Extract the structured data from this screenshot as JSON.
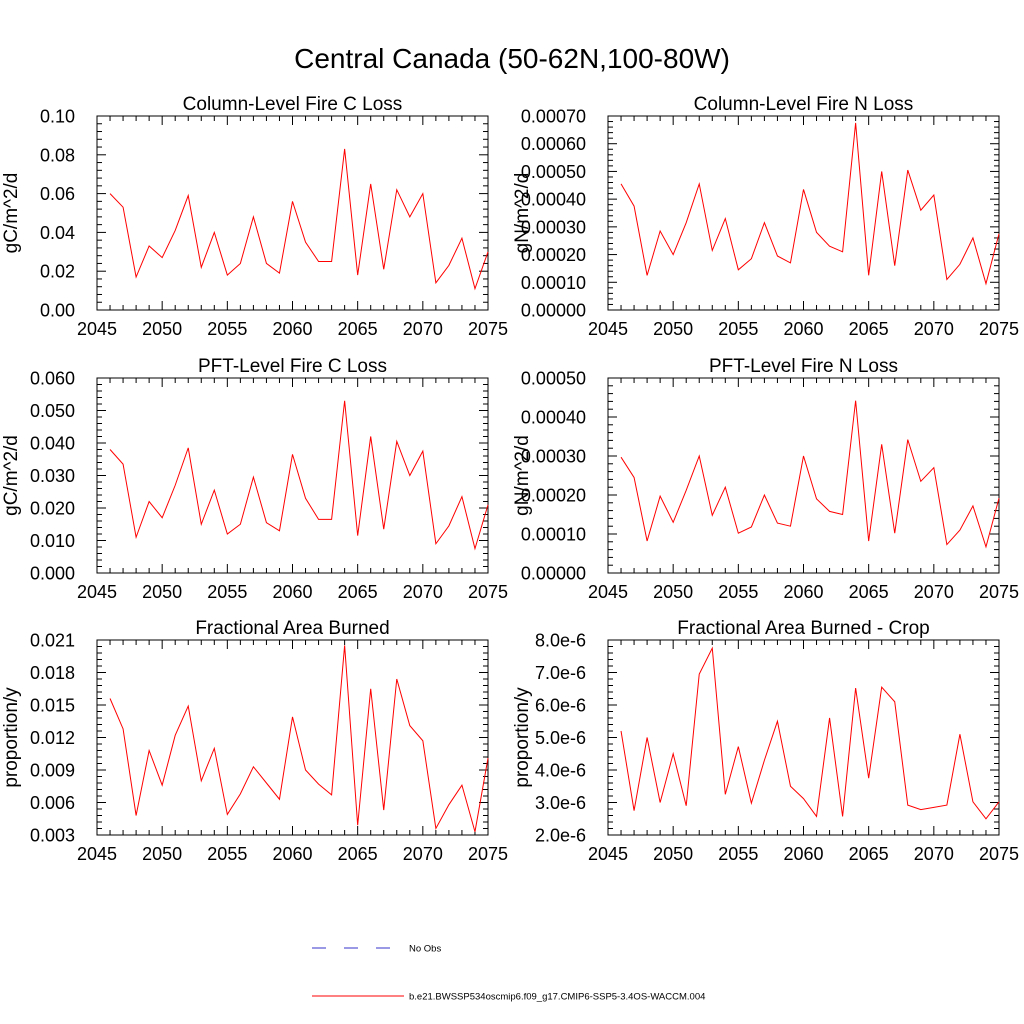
{
  "figure": {
    "title": "Central Canada (50-62N,100-80W)"
  },
  "legend": {
    "entries": [
      {
        "label": "No Obs",
        "color": "#3333cc",
        "dashed": true
      },
      {
        "label": "b.e21.BWSSP534oscmip6.f09_g17.CMIP6-SSP5-3.4OS-WACCM.004",
        "color": "#ff0000",
        "dashed": false
      }
    ]
  },
  "chart_data": [
    {
      "type": "line",
      "title": "Column-Level Fire C Loss",
      "xlabel": "",
      "ylabel": "gC/m^2/d",
      "xlim": [
        2045,
        2075
      ],
      "ylim": [
        0.0,
        0.1
      ],
      "xticks": [
        2045,
        2050,
        2055,
        2060,
        2065,
        2070,
        2075
      ],
      "yticks": [
        0.0,
        0.02,
        0.04,
        0.06,
        0.08,
        0.1
      ],
      "ytick_labels": [
        "0.00",
        "0.02",
        "0.04",
        "0.06",
        "0.08",
        "0.10"
      ],
      "series": [
        {
          "name": "b.e21.BWSSP534oscmip6.f09_g17.CMIP6-SSP5-3.4OS-WACCM.004",
          "color": "#ff0000",
          "x": [
            2046,
            2047,
            2048,
            2049,
            2050,
            2051,
            2052,
            2053,
            2054,
            2055,
            2056,
            2057,
            2058,
            2059,
            2060,
            2061,
            2062,
            2063,
            2064,
            2065,
            2066,
            2067,
            2068,
            2069,
            2070,
            2071,
            2072,
            2073,
            2074,
            2075
          ],
          "values": [
            0.06,
            0.053,
            0.017,
            0.033,
            0.027,
            0.041,
            0.059,
            0.022,
            0.04,
            0.018,
            0.024,
            0.048,
            0.024,
            0.019,
            0.056,
            0.035,
            0.025,
            0.025,
            0.083,
            0.018,
            0.065,
            0.021,
            0.062,
            0.048,
            0.06,
            0.014,
            0.023,
            0.037,
            0.011,
            0.03
          ]
        }
      ]
    },
    {
      "type": "line",
      "title": "Column-Level Fire N Loss",
      "xlabel": "",
      "ylabel": "gN/m^2/d",
      "xlim": [
        2045,
        2075
      ],
      "ylim": [
        0.0,
        0.0007
      ],
      "xticks": [
        2045,
        2050,
        2055,
        2060,
        2065,
        2070,
        2075
      ],
      "yticks": [
        0.0,
        0.0001,
        0.0002,
        0.0003,
        0.0004,
        0.0005,
        0.0006,
        0.0007
      ],
      "ytick_labels": [
        "0.00000",
        "0.00010",
        "0.00020",
        "0.00030",
        "0.00040",
        "0.00050",
        "0.00060",
        "0.00070"
      ],
      "series": [
        {
          "name": "b.e21.BWSSP534oscmip6.f09_g17.CMIP6-SSP5-3.4OS-WACCM.004",
          "color": "#ff0000",
          "x": [
            2046,
            2047,
            2048,
            2049,
            2050,
            2051,
            2052,
            2053,
            2054,
            2055,
            2056,
            2057,
            2058,
            2059,
            2060,
            2061,
            2062,
            2063,
            2064,
            2065,
            2066,
            2067,
            2068,
            2069,
            2070,
            2071,
            2072,
            2073,
            2074,
            2075
          ],
          "values": [
            0.000455,
            0.000375,
            0.000125,
            0.000285,
            0.0002,
            0.000315,
            0.000455,
            0.000215,
            0.00033,
            0.000145,
            0.000185,
            0.000315,
            0.000195,
            0.00017,
            0.000435,
            0.00028,
            0.00023,
            0.00021,
            0.000675,
            0.000125,
            0.0005,
            0.00016,
            0.000505,
            0.00036,
            0.000415,
            0.00011,
            0.000165,
            0.00026,
            9.5e-05,
            0.000275
          ]
        }
      ]
    },
    {
      "type": "line",
      "title": "PFT-Level Fire C Loss",
      "xlabel": "",
      "ylabel": "gC/m^2/d",
      "xlim": [
        2045,
        2075
      ],
      "ylim": [
        0.0,
        0.06
      ],
      "xticks": [
        2045,
        2050,
        2055,
        2060,
        2065,
        2070,
        2075
      ],
      "yticks": [
        0.0,
        0.01,
        0.02,
        0.03,
        0.04,
        0.05,
        0.06
      ],
      "ytick_labels": [
        "0.000",
        "0.010",
        "0.020",
        "0.030",
        "0.040",
        "0.050",
        "0.060"
      ],
      "series": [
        {
          "name": "b.e21.BWSSP534oscmip6.f09_g17.CMIP6-SSP5-3.4OS-WACCM.004",
          "color": "#ff0000",
          "x": [
            2046,
            2047,
            2048,
            2049,
            2050,
            2051,
            2052,
            2053,
            2054,
            2055,
            2056,
            2057,
            2058,
            2059,
            2060,
            2061,
            2062,
            2063,
            2064,
            2065,
            2066,
            2067,
            2068,
            2069,
            2070,
            2071,
            2072,
            2073,
            2074,
            2075
          ],
          "values": [
            0.038,
            0.0335,
            0.011,
            0.022,
            0.017,
            0.027,
            0.0385,
            0.015,
            0.0255,
            0.012,
            0.015,
            0.0295,
            0.0155,
            0.013,
            0.0365,
            0.023,
            0.0165,
            0.0165,
            0.053,
            0.0115,
            0.042,
            0.0135,
            0.0405,
            0.03,
            0.0375,
            0.009,
            0.0145,
            0.0235,
            0.0075,
            0.021
          ]
        }
      ]
    },
    {
      "type": "line",
      "title": "PFT-Level Fire N Loss",
      "xlabel": "",
      "ylabel": "gN/m^2/d",
      "xlim": [
        2045,
        2075
      ],
      "ylim": [
        0.0,
        0.0005
      ],
      "xticks": [
        2045,
        2050,
        2055,
        2060,
        2065,
        2070,
        2075
      ],
      "yticks": [
        0.0,
        0.0001,
        0.0002,
        0.0003,
        0.0004,
        0.0005
      ],
      "ytick_labels": [
        "0.00000",
        "0.00010",
        "0.00020",
        "0.00030",
        "0.00040",
        "0.00050"
      ],
      "series": [
        {
          "name": "b.e21.BWSSP534oscmip6.f09_g17.CMIP6-SSP5-3.4OS-WACCM.004",
          "color": "#ff0000",
          "x": [
            2046,
            2047,
            2048,
            2049,
            2050,
            2051,
            2052,
            2053,
            2054,
            2055,
            2056,
            2057,
            2058,
            2059,
            2060,
            2061,
            2062,
            2063,
            2064,
            2065,
            2066,
            2067,
            2068,
            2069,
            2070,
            2071,
            2072,
            2073,
            2074,
            2075
          ],
          "values": [
            0.000297,
            0.000245,
            8.2e-05,
            0.000197,
            0.00013,
            0.000212,
            0.0003,
            0.000148,
            0.00022,
            0.000102,
            0.000118,
            0.0002,
            0.000128,
            0.00012,
            0.0003,
            0.00019,
            0.000158,
            0.00015,
            0.000442,
            8.2e-05,
            0.00033,
            0.000102,
            0.000342,
            0.000235,
            0.00027,
            7.3e-05,
            0.00011,
            0.000172,
            6.7e-05,
            0.000192
          ]
        }
      ]
    },
    {
      "type": "line",
      "title": "Fractional Area Burned",
      "xlabel": "",
      "ylabel": "proportion/y",
      "xlim": [
        2045,
        2075
      ],
      "ylim": [
        0.003,
        0.021
      ],
      "xticks": [
        2045,
        2050,
        2055,
        2060,
        2065,
        2070,
        2075
      ],
      "yticks": [
        0.003,
        0.006,
        0.009,
        0.012,
        0.015,
        0.018,
        0.021
      ],
      "ytick_labels": [
        "0.003",
        "0.006",
        "0.009",
        "0.012",
        "0.015",
        "0.018",
        "0.021"
      ],
      "series": [
        {
          "name": "b.e21.BWSSP534oscmip6.f09_g17.CMIP6-SSP5-3.4OS-WACCM.004",
          "color": "#ff0000",
          "x": [
            2046,
            2047,
            2048,
            2049,
            2050,
            2051,
            2052,
            2053,
            2054,
            2055,
            2056,
            2057,
            2058,
            2059,
            2060,
            2061,
            2062,
            2063,
            2064,
            2065,
            2066,
            2067,
            2068,
            2069,
            2070,
            2071,
            2072,
            2073,
            2074,
            2075
          ],
          "values": [
            0.0156,
            0.0128,
            0.0048,
            0.0108,
            0.0076,
            0.0122,
            0.0149,
            0.008,
            0.011,
            0.0049,
            0.0068,
            0.0093,
            0.0078,
            0.0063,
            0.0139,
            0.009,
            0.0077,
            0.0067,
            0.0205,
            0.0039,
            0.0165,
            0.0053,
            0.0174,
            0.0131,
            0.0117,
            0.0036,
            0.0058,
            0.0076,
            0.0033,
            0.0101
          ]
        }
      ]
    },
    {
      "type": "line",
      "title": "Fractional Area Burned - Crop",
      "xlabel": "",
      "ylabel": "proportion/y",
      "xlim": [
        2045,
        2075
      ],
      "ylim": [
        2e-06,
        8e-06
      ],
      "xticks": [
        2045,
        2050,
        2055,
        2060,
        2065,
        2070,
        2075
      ],
      "yticks": [
        2e-06,
        3e-06,
        4e-06,
        5e-06,
        6e-06,
        7e-06,
        8e-06
      ],
      "ytick_labels": [
        "2.0e-6",
        "3.0e-6",
        "4.0e-6",
        "5.0e-6",
        "6.0e-6",
        "7.0e-6",
        "8.0e-6"
      ],
      "series": [
        {
          "name": "b.e21.BWSSP534oscmip6.f09_g17.CMIP6-SSP5-3.4OS-WACCM.004",
          "color": "#ff0000",
          "x": [
            2046,
            2047,
            2048,
            2049,
            2050,
            2051,
            2052,
            2053,
            2054,
            2055,
            2056,
            2057,
            2058,
            2059,
            2060,
            2061,
            2062,
            2063,
            2064,
            2065,
            2066,
            2067,
            2068,
            2069,
            2070,
            2071,
            2072,
            2073,
            2074,
            2075
          ],
          "values": [
            5.2e-06,
            2.75e-06,
            5e-06,
            3e-06,
            4.5e-06,
            2.9e-06,
            6.95e-06,
            7.75e-06,
            3.25e-06,
            4.72e-06,
            2.98e-06,
            4.3e-06,
            5.5e-06,
            3.5e-06,
            3.12e-06,
            2.57e-06,
            5.6e-06,
            2.57e-06,
            6.52e-06,
            3.75e-06,
            6.55e-06,
            6.1e-06,
            2.92e-06,
            2.78e-06,
            2.85e-06,
            2.92e-06,
            5.1e-06,
            3.02e-06,
            2.5e-06,
            3.02e-06
          ]
        }
      ]
    }
  ]
}
